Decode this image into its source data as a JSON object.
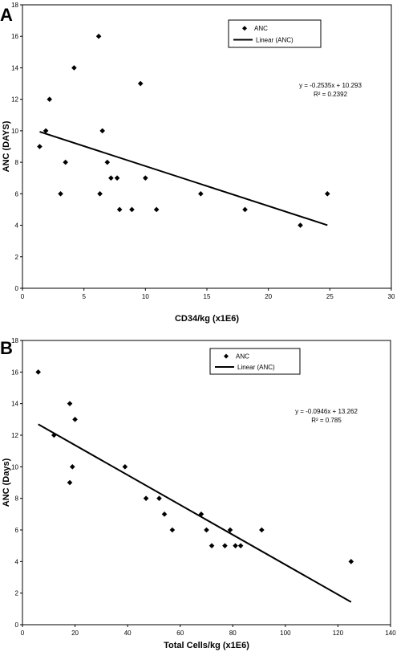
{
  "chart_data": [
    {
      "type": "scatter",
      "panel_label": "A",
      "xlabel": "CD34/kg (x1E6)",
      "ylabel": "ANC (DAYS)",
      "xlim": [
        0,
        30
      ],
      "ylim": [
        0,
        18
      ],
      "xticks": [
        0,
        5,
        10,
        15,
        20,
        25,
        30
      ],
      "yticks": [
        0,
        2,
        4,
        6,
        8,
        10,
        12,
        14,
        16,
        18
      ],
      "grid": false,
      "legend_position": "top-center",
      "legend": [
        "ANC",
        "Linear (ANC)"
      ],
      "series": [
        {
          "name": "ANC",
          "marker": "diamond",
          "points": [
            [
              1.4,
              9
            ],
            [
              1.9,
              10
            ],
            [
              2.2,
              12
            ],
            [
              3.1,
              6
            ],
            [
              3.5,
              8
            ],
            [
              4.2,
              14
            ],
            [
              6.2,
              16
            ],
            [
              6.3,
              6
            ],
            [
              6.5,
              10
            ],
            [
              6.9,
              8
            ],
            [
              7.2,
              7
            ],
            [
              7.7,
              7
            ],
            [
              7.9,
              5
            ],
            [
              8.9,
              5
            ],
            [
              9.6,
              13
            ],
            [
              10.0,
              7
            ],
            [
              10.9,
              5
            ],
            [
              14.5,
              6
            ],
            [
              18.1,
              5
            ],
            [
              22.6,
              4
            ],
            [
              24.8,
              6
            ]
          ]
        }
      ],
      "trendline": {
        "name": "Linear (ANC)",
        "slope": -0.2535,
        "intercept": 10.293,
        "x_range": [
          1.4,
          24.8
        ],
        "equation": "y = -0.2535x + 10.293",
        "r2": "R² = 0.2392"
      }
    },
    {
      "type": "scatter",
      "panel_label": "B",
      "xlabel": "Total Cells/kg (x1E6)",
      "ylabel": "ANC (Days)",
      "xlim": [
        0,
        140
      ],
      "ylim": [
        0,
        18
      ],
      "xticks": [
        0,
        20,
        40,
        60,
        80,
        100,
        120,
        140
      ],
      "yticks": [
        0,
        2,
        4,
        6,
        8,
        10,
        12,
        14,
        16,
        18
      ],
      "grid": false,
      "legend_position": "top-center",
      "legend": [
        "ANC",
        "Linear (ANC)"
      ],
      "series": [
        {
          "name": "ANC",
          "marker": "diamond",
          "points": [
            [
              6,
              16
            ],
            [
              12,
              12
            ],
            [
              18,
              14
            ],
            [
              18,
              9
            ],
            [
              19,
              10
            ],
            [
              20,
              13
            ],
            [
              39,
              10
            ],
            [
              47,
              8
            ],
            [
              52,
              8
            ],
            [
              54,
              7
            ],
            [
              57,
              6
            ],
            [
              68,
              7
            ],
            [
              70,
              6
            ],
            [
              72,
              5
            ],
            [
              77,
              5
            ],
            [
              79,
              6
            ],
            [
              81,
              5
            ],
            [
              83,
              5
            ],
            [
              91,
              6
            ],
            [
              125,
              4
            ]
          ]
        }
      ],
      "trendline": {
        "name": "Linear (ANC)",
        "slope": -0.0946,
        "intercept": 13.262,
        "x_range": [
          6,
          125
        ],
        "equation": "y = -0.0946x + 13.262",
        "r2": "R² = 0.785"
      }
    }
  ]
}
